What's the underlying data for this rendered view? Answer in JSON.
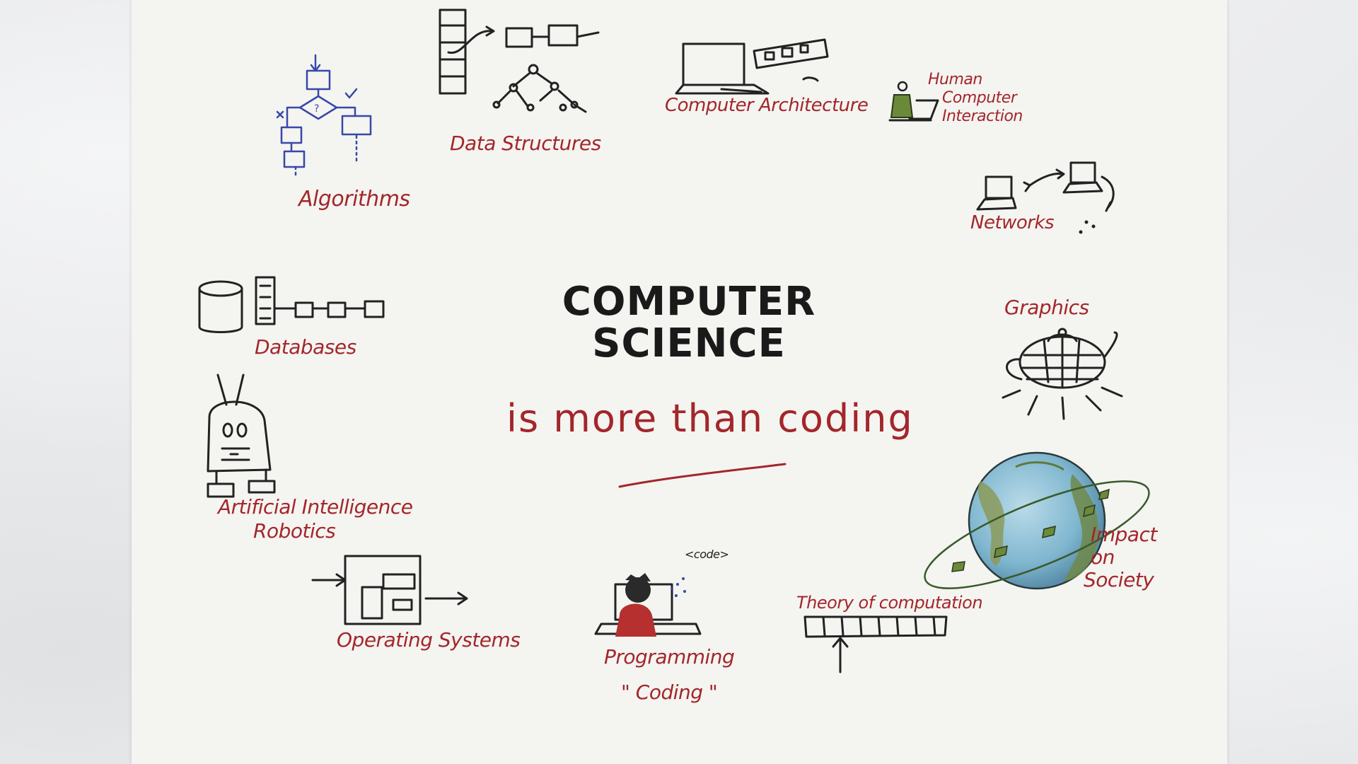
{
  "title": {
    "line1": "COMPUTER",
    "line2": "SCIENCE"
  },
  "subtitle": "is more than coding",
  "topics": {
    "algorithms": "Algorithms",
    "data_structures": "Data Structures",
    "computer_architecture": "Computer Architecture",
    "hci_line1": "Human",
    "hci_line2": "Computer",
    "hci_line3": "Interaction",
    "networks": "Networks",
    "databases": "Databases",
    "graphics": "Graphics",
    "ai_line1": "Artificial Intelligence",
    "ai_line2": "Robotics",
    "impact_line1": "Impact",
    "impact_line2": "on",
    "impact_line3": "Society",
    "operating_systems": "Operating Systems",
    "programming_line1": "Programming",
    "programming_line2": "\" Coding \"",
    "code_tag": "<code>",
    "theory": "Theory of computation"
  },
  "colors": {
    "ink_red": "#a3262a",
    "ink_black": "#1a1a1a",
    "ink_blue": "#3848a8",
    "paper": "#f4f4f1"
  }
}
